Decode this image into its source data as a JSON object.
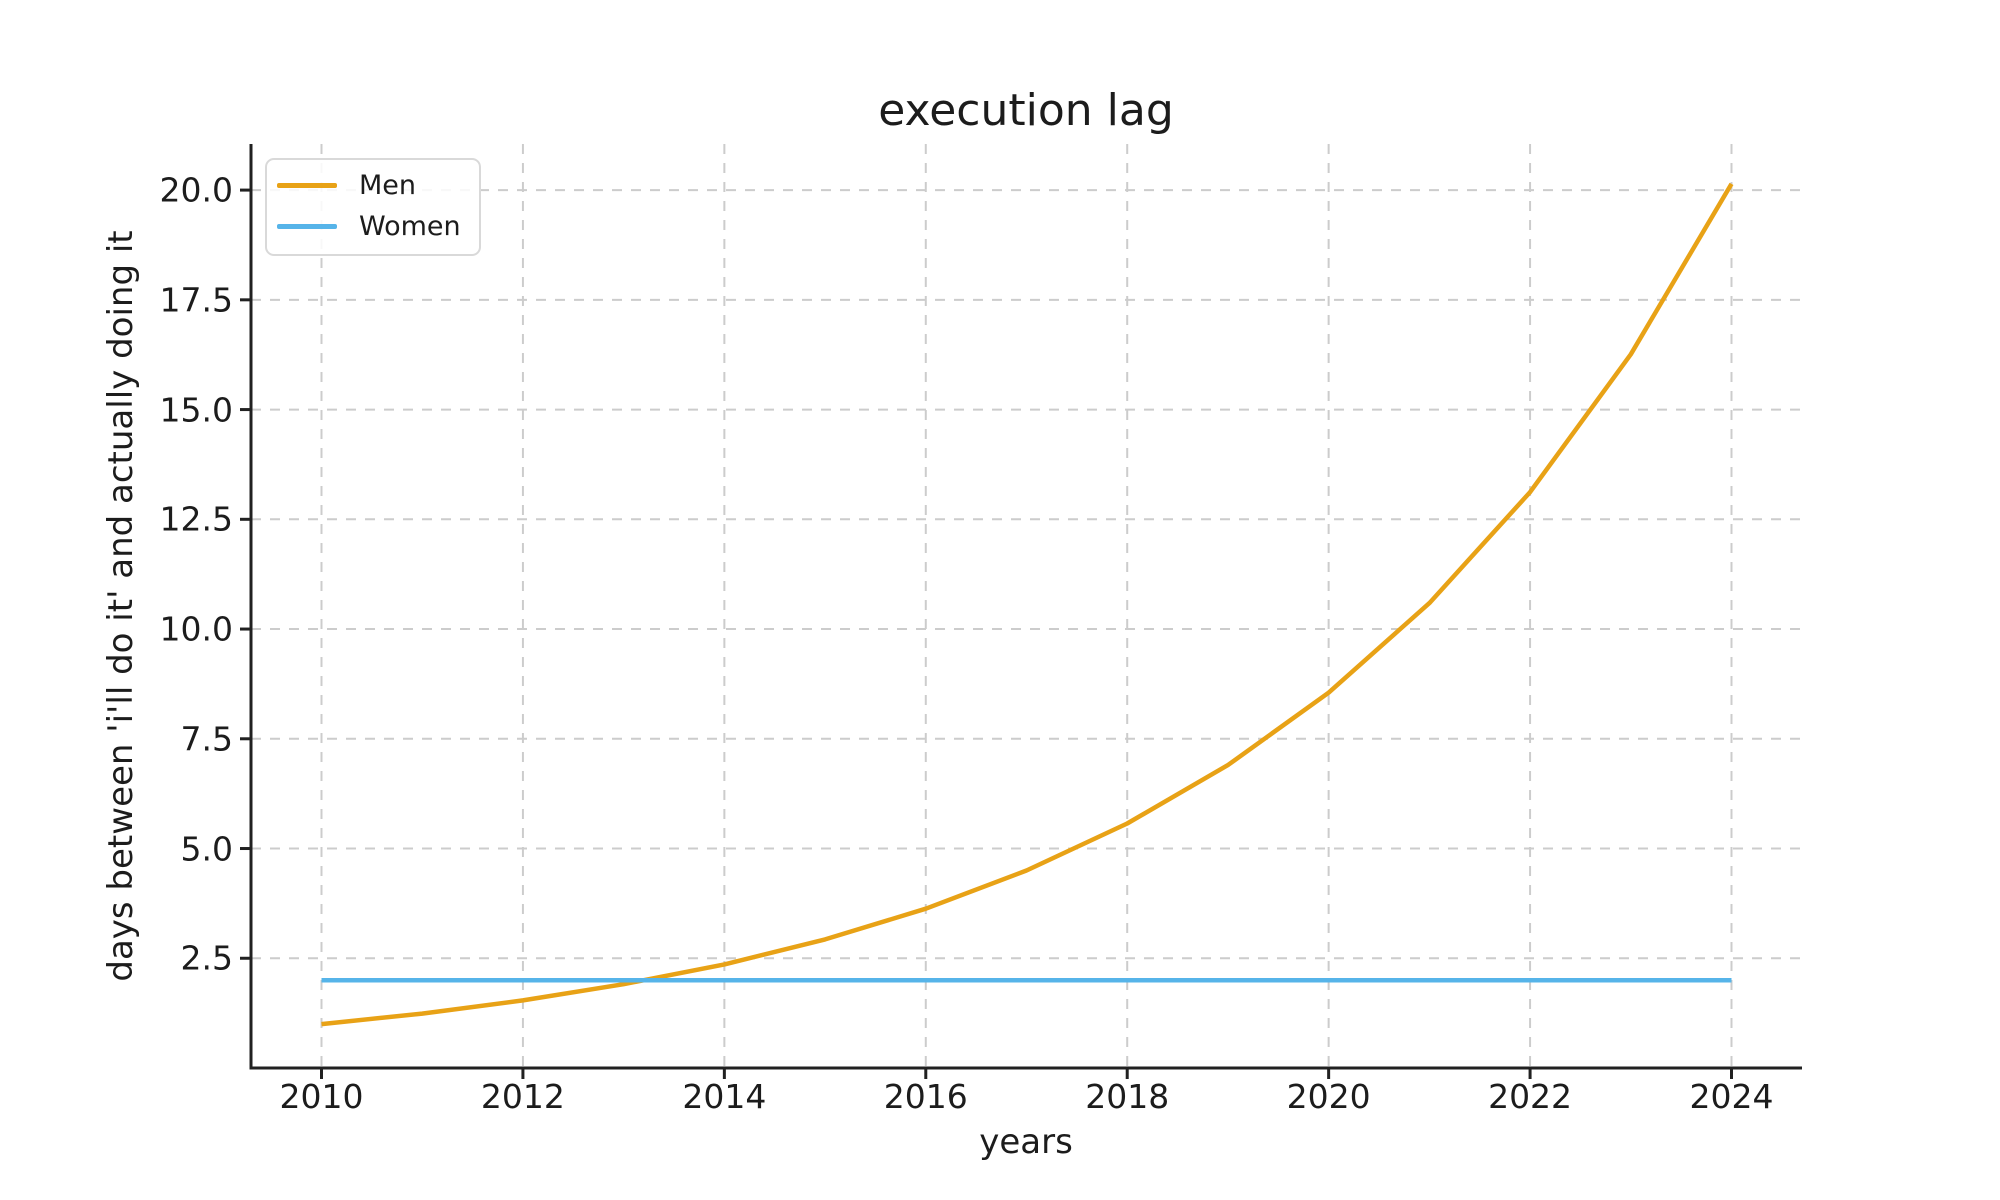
{
  "chart_data": {
    "type": "line",
    "title": "execution lag",
    "xlabel": "years",
    "ylabel": "days between 'i'll do it' and actually doing it",
    "x": [
      2010,
      2011,
      2012,
      2013,
      2014,
      2015,
      2016,
      2017,
      2018,
      2019,
      2020,
      2021,
      2022,
      2023,
      2024
    ],
    "series": [
      {
        "name": "Men",
        "color": "#E8A216",
        "values": [
          1.0,
          1.24,
          1.54,
          1.91,
          2.36,
          2.93,
          3.63,
          4.5,
          5.57,
          6.9,
          8.55,
          10.59,
          13.12,
          16.26,
          20.14
        ]
      },
      {
        "name": "Women",
        "color": "#56B4E9",
        "values": [
          2.0,
          2.0,
          2.0,
          2.0,
          2.0,
          2.0,
          2.0,
          2.0,
          2.0,
          2.0,
          2.0,
          2.0,
          2.0,
          2.0,
          2.0
        ]
      }
    ],
    "x_ticks": {
      "values": [
        2010,
        2012,
        2014,
        2016,
        2018,
        2020,
        2022,
        2024
      ],
      "labels": [
        "2010",
        "2012",
        "2014",
        "2016",
        "2018",
        "2020",
        "2022",
        "2024"
      ]
    },
    "y_ticks": {
      "values": [
        2.5,
        5.0,
        7.5,
        10.0,
        12.5,
        15.0,
        17.5,
        20.0
      ],
      "labels": [
        "2.5",
        "5.0",
        "7.5",
        "10.0",
        "12.5",
        "15.0",
        "17.5",
        "20.0"
      ]
    },
    "xlim": [
      2009.3,
      2024.7
    ],
    "ylim": [
      0,
      21.05
    ],
    "grid": true,
    "grid_style": "dashed",
    "legend_position": "upper left"
  },
  "colors": {
    "background": "#ffffff",
    "text": "#1c1c1c",
    "axis": "#212121",
    "grid": "#cccccc",
    "legend_border": "#d9d9d9",
    "men_line": "#E8A216",
    "women_line": "#56B4E9"
  }
}
